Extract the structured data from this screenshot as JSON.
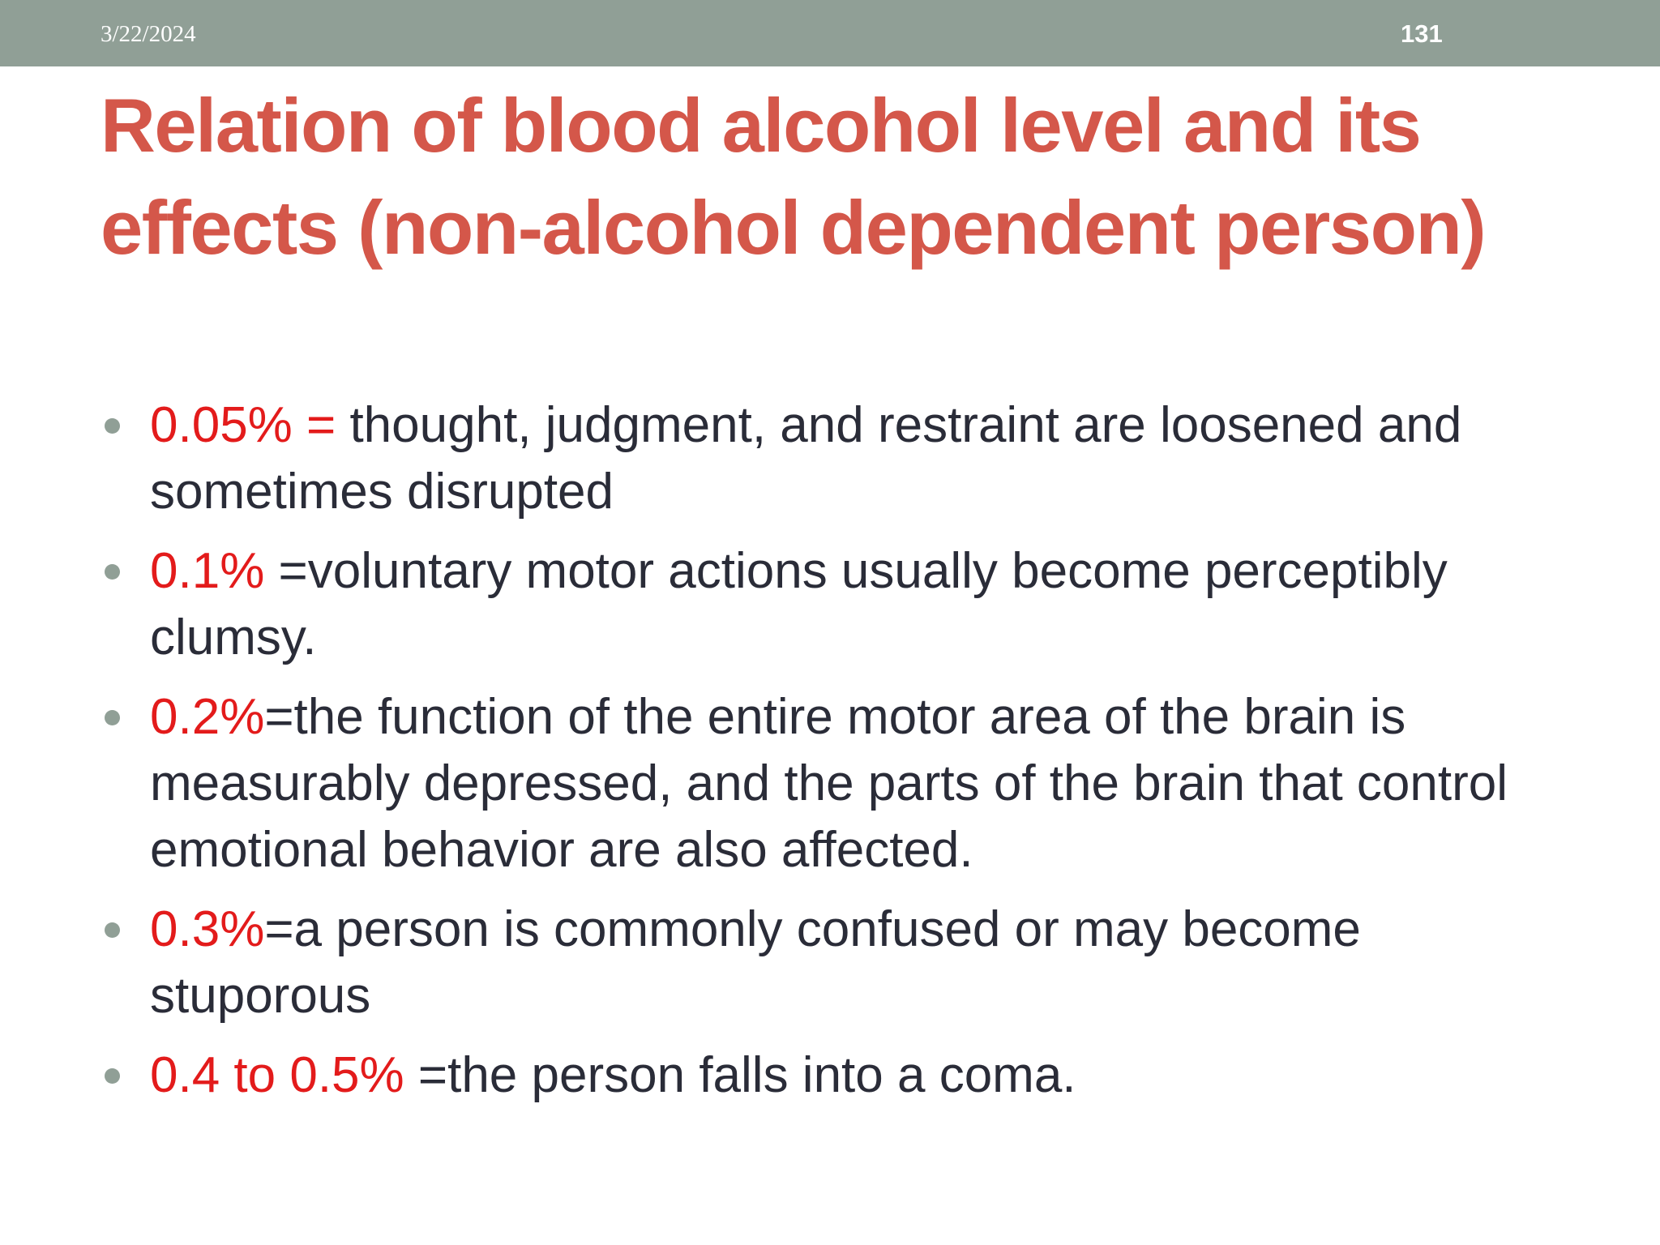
{
  "header": {
    "date": "3/22/2024",
    "slide_number": "131"
  },
  "title": "Relation of blood alcohol level and its effects (non-alcohol dependent person)",
  "bullets": [
    {
      "value": "0.05% =",
      "text": " thought, judgment, and restraint are loosened and sometimes disrupted"
    },
    {
      "value": "0.1%",
      "text": " =voluntary motor actions usually become perceptibly clumsy."
    },
    {
      "value": "0.2%",
      "text": "=the function of the entire motor area of the brain is measurably depressed, and the parts of the brain that control emotional behavior are also affected."
    },
    {
      "value": "0.3%",
      "text": "=a person is commonly confused or may become stuporous"
    },
    {
      "value": "0.4 to 0.5%",
      "text": " =the person falls into a coma."
    }
  ],
  "colors": {
    "header_bar": "#909f96",
    "title": "#d4574a",
    "highlight_value": "#e31b1b",
    "body_text": "#2a2c38",
    "bullet_dot": "#909f96"
  }
}
